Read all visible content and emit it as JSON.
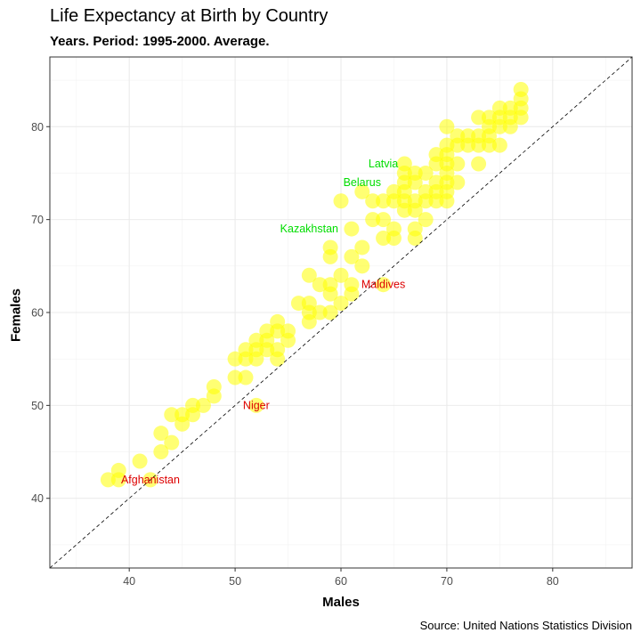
{
  "chart_data": {
    "type": "scatter",
    "title": "Life Expectancy at Birth by Country",
    "subtitle": "Years. Period: 1995-2000. Average.",
    "xlabel": "Males",
    "ylabel": "Females",
    "caption": "Source: United Nations Statistics Division",
    "xlim": [
      32.5,
      87.5
    ],
    "ylim": [
      32.5,
      87.5
    ],
    "xticks": [
      40,
      50,
      60,
      70,
      80
    ],
    "yticks": [
      40,
      50,
      60,
      70,
      80
    ],
    "grid": true,
    "reference_line": "y = x (dashed)",
    "point_color": "#ffff00",
    "label_colors": {
      "above": "#00dd00",
      "below": "#dd0000"
    },
    "points": [
      [
        38,
        42
      ],
      [
        39,
        43
      ],
      [
        39,
        42
      ],
      [
        41,
        44
      ],
      [
        42,
        42
      ],
      [
        43,
        47
      ],
      [
        43,
        45
      ],
      [
        44,
        46
      ],
      [
        44,
        49
      ],
      [
        45,
        49
      ],
      [
        45,
        48
      ],
      [
        46,
        49
      ],
      [
        46,
        50
      ],
      [
        47,
        50
      ],
      [
        48,
        52
      ],
      [
        48,
        51
      ],
      [
        50,
        55
      ],
      [
        50,
        53
      ],
      [
        51,
        53
      ],
      [
        51,
        56
      ],
      [
        51,
        55
      ],
      [
        52,
        55
      ],
      [
        52,
        56
      ],
      [
        52,
        57
      ],
      [
        53,
        56
      ],
      [
        53,
        57
      ],
      [
        53,
        58
      ],
      [
        54,
        55
      ],
      [
        54,
        56
      ],
      [
        54,
        58
      ],
      [
        54,
        59
      ],
      [
        55,
        57
      ],
      [
        55,
        58
      ],
      [
        56,
        61
      ],
      [
        57,
        61
      ],
      [
        57,
        60
      ],
      [
        57,
        59
      ],
      [
        57,
        64
      ],
      [
        58,
        63
      ],
      [
        58,
        60
      ],
      [
        59,
        62
      ],
      [
        59,
        63
      ],
      [
        59,
        60
      ],
      [
        60,
        64
      ],
      [
        60,
        61
      ],
      [
        61,
        63
      ],
      [
        61,
        62
      ],
      [
        59,
        66
      ],
      [
        59,
        67
      ],
      [
        61,
        66
      ],
      [
        62,
        65
      ],
      [
        62,
        67
      ],
      [
        61,
        69
      ],
      [
        60,
        72
      ],
      [
        62,
        73
      ],
      [
        63,
        72
      ],
      [
        63,
        70
      ],
      [
        64,
        72
      ],
      [
        64,
        70
      ],
      [
        64,
        68
      ],
      [
        65,
        68
      ],
      [
        65,
        69
      ],
      [
        65,
        72
      ],
      [
        65,
        73
      ],
      [
        66,
        72
      ],
      [
        66,
        71
      ],
      [
        66,
        73
      ],
      [
        66,
        74
      ],
      [
        66,
        75
      ],
      [
        66,
        76
      ],
      [
        67,
        68
      ],
      [
        67,
        69
      ],
      [
        67,
        71
      ],
      [
        67,
        72
      ],
      [
        67,
        74
      ],
      [
        67,
        75
      ],
      [
        68,
        70
      ],
      [
        68,
        72
      ],
      [
        68,
        73
      ],
      [
        68,
        75
      ],
      [
        69,
        72
      ],
      [
        69,
        73
      ],
      [
        69,
        74
      ],
      [
        69,
        76
      ],
      [
        69,
        77
      ],
      [
        70,
        72
      ],
      [
        70,
        73
      ],
      [
        70,
        74
      ],
      [
        70,
        75
      ],
      [
        70,
        76
      ],
      [
        70,
        77
      ],
      [
        70,
        78
      ],
      [
        70,
        80
      ],
      [
        71,
        74
      ],
      [
        71,
        76
      ],
      [
        71,
        78
      ],
      [
        71,
        79
      ],
      [
        72,
        78
      ],
      [
        72,
        79
      ],
      [
        73,
        76
      ],
      [
        73,
        78
      ],
      [
        73,
        79
      ],
      [
        73,
        81
      ],
      [
        74,
        78
      ],
      [
        74,
        79
      ],
      [
        74,
        80
      ],
      [
        74,
        81
      ],
      [
        75,
        78
      ],
      [
        75,
        80
      ],
      [
        75,
        81
      ],
      [
        75,
        82
      ],
      [
        76,
        80
      ],
      [
        76,
        81
      ],
      [
        76,
        82
      ],
      [
        77,
        81
      ],
      [
        77,
        82
      ],
      [
        77,
        83
      ],
      [
        77,
        84
      ],
      [
        52,
        50
      ],
      [
        64,
        63
      ]
    ],
    "labeled_points": [
      {
        "name": "Latvia",
        "x": 64,
        "y": 76,
        "side": "above"
      },
      {
        "name": "Belarus",
        "x": 62,
        "y": 74,
        "side": "above"
      },
      {
        "name": "Kazakhstan",
        "x": 57,
        "y": 69,
        "side": "above"
      },
      {
        "name": "Maldives",
        "x": 64,
        "y": 63,
        "side": "below"
      },
      {
        "name": "Niger",
        "x": 52,
        "y": 50,
        "side": "below"
      },
      {
        "name": "Afghanistan",
        "x": 42,
        "y": 42,
        "side": "below"
      }
    ]
  }
}
